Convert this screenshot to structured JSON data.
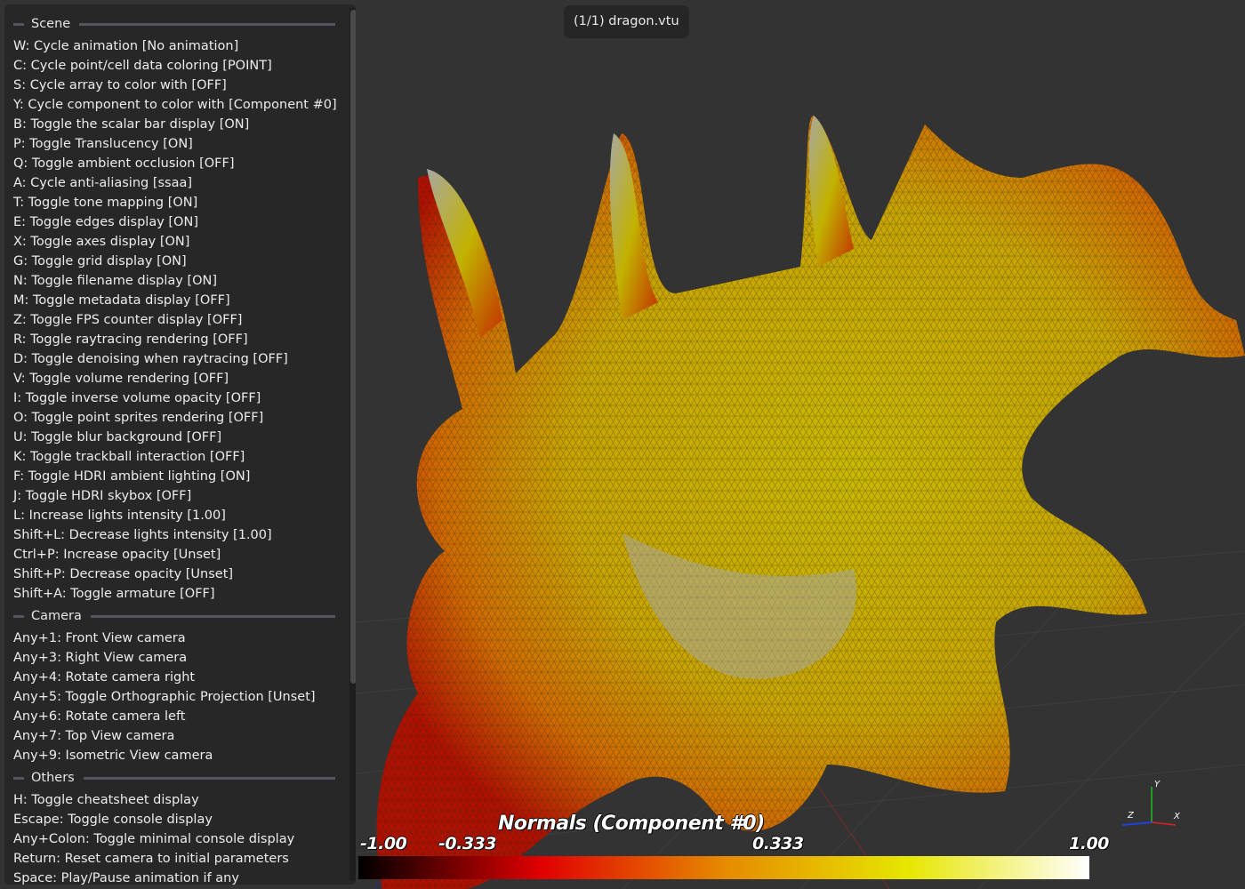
{
  "viewer": {
    "filename_label": "(1/1) dragon.vtu",
    "background_color": "#333333"
  },
  "cheatsheet": {
    "sections": [
      {
        "title": "Scene",
        "items": [
          "W: Cycle animation [No animation]",
          "C: Cycle point/cell data coloring [POINT]",
          "S: Cycle array to color with [OFF]",
          "Y: Cycle component to color with [Component #0]",
          "B: Toggle the scalar bar display [ON]",
          "P: Toggle Translucency [ON]",
          "Q: Toggle ambient occlusion [OFF]",
          "A: Cycle anti-aliasing [ssaa]",
          "T: Toggle tone mapping [ON]",
          "E: Toggle edges display [ON]",
          "X: Toggle axes display [ON]",
          "G: Toggle grid display [ON]",
          "N: Toggle filename display [ON]",
          "M: Toggle metadata display [OFF]",
          "Z: Toggle FPS counter display [OFF]",
          "R: Toggle raytracing rendering [OFF]",
          "D: Toggle denoising when raytracing [OFF]",
          "V: Toggle volume rendering [OFF]",
          "I: Toggle inverse volume opacity [OFF]",
          "O: Toggle point sprites rendering [OFF]",
          "U: Toggle blur background [OFF]",
          "K: Toggle trackball interaction [OFF]",
          "F: Toggle HDRI ambient lighting [ON]",
          "J: Toggle HDRI skybox [OFF]",
          "L: Increase lights intensity [1.00]",
          "Shift+L: Decrease lights intensity [1.00]",
          "Ctrl+P: Increase opacity [Unset]",
          "Shift+P: Decrease opacity [Unset]",
          "Shift+A: Toggle armature [OFF]"
        ]
      },
      {
        "title": "Camera",
        "items": [
          "Any+1: Front View camera",
          "Any+3: Right View camera",
          "Any+4: Rotate camera right",
          "Any+5: Toggle Orthographic Projection [Unset]",
          "Any+6: Rotate camera left",
          "Any+7: Top View camera",
          "Any+9: Isometric View camera"
        ]
      },
      {
        "title": "Others",
        "items": [
          "H: Toggle cheatsheet display",
          "Escape: Toggle console display",
          "Any+Colon: Toggle minimal console display",
          "Return: Reset camera to initial parameters",
          "Space: Play/Pause animation if any"
        ]
      }
    ]
  },
  "scalar_bar": {
    "title": "Normals (Component #0)",
    "ticks": [
      "-1.00",
      "-0.333",
      "0.333",
      "1.00"
    ],
    "range": [
      -1.0,
      1.0
    ],
    "colors": [
      "#000000",
      "#e00000",
      "#e68a00",
      "#e6e600",
      "#ffffff"
    ]
  },
  "axes": {
    "x_label": "X",
    "y_label": "Y",
    "z_label": "Z",
    "x_color": "#e02020",
    "y_color": "#20c020",
    "z_color": "#2040e0"
  }
}
